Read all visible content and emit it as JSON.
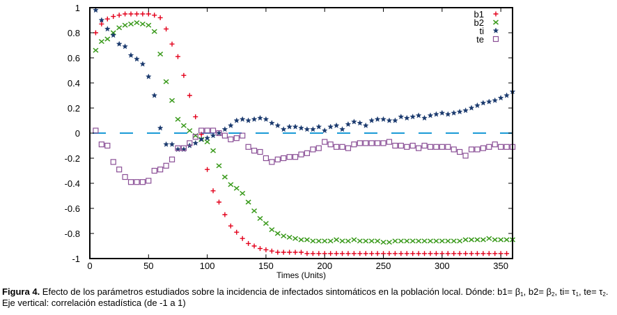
{
  "chart_data": {
    "type": "scatter",
    "title": "",
    "xlabel": "Times (Units)",
    "ylabel": "",
    "xlim": [
      0,
      360
    ],
    "ylim": [
      -1,
      1
    ],
    "xticks": [
      0,
      50,
      100,
      150,
      200,
      250,
      300,
      350
    ],
    "yticks": [
      -1,
      -0.8,
      -0.6,
      -0.4,
      -0.2,
      0,
      0.2,
      0.4,
      0.6,
      0.8,
      1
    ],
    "ytick_labels": [
      "-1",
      "-0.8",
      "-0.6",
      "-0.4",
      "-0.2",
      "0",
      "0.2",
      "0.4",
      "0.6",
      "0.8",
      "1"
    ],
    "grid": false,
    "legend_position": "top-right",
    "reference_line": {
      "y": 0,
      "style": "dashed",
      "color": "#1a9ad6"
    },
    "series": [
      {
        "name": "b1",
        "marker": "plus",
        "color": "#e3001b",
        "x": [
          5,
          10,
          15,
          20,
          25,
          30,
          35,
          40,
          45,
          50,
          55,
          60,
          65,
          70,
          75,
          80,
          85,
          90,
          95,
          100,
          105,
          110,
          115,
          120,
          125,
          130,
          135,
          140,
          145,
          150,
          155,
          160,
          165,
          170,
          175,
          180,
          185,
          190,
          195,
          200,
          205,
          210,
          215,
          220,
          225,
          230,
          235,
          240,
          245,
          250,
          255,
          260,
          265,
          270,
          275,
          280,
          285,
          290,
          295,
          300,
          305,
          310,
          315,
          320,
          325,
          330,
          335,
          340,
          345,
          350,
          355
        ],
        "values": [
          0.8,
          0.87,
          0.91,
          0.93,
          0.94,
          0.95,
          0.95,
          0.95,
          0.95,
          0.95,
          0.94,
          0.92,
          0.83,
          0.71,
          0.61,
          0.46,
          0.3,
          0.13,
          -0.01,
          -0.29,
          -0.46,
          -0.55,
          -0.65,
          -0.74,
          -0.79,
          -0.84,
          -0.88,
          -0.9,
          -0.92,
          -0.93,
          -0.94,
          -0.95,
          -0.95,
          -0.95,
          -0.95,
          -0.95,
          -0.96,
          -0.96,
          -0.96,
          -0.96,
          -0.96,
          -0.96,
          -0.96,
          -0.96,
          -0.96,
          -0.96,
          -0.96,
          -0.96,
          -0.96,
          -0.96,
          -0.96,
          -0.96,
          -0.96,
          -0.96,
          -0.96,
          -0.96,
          -0.96,
          -0.96,
          -0.96,
          -0.96,
          -0.96,
          -0.96,
          -0.96,
          -0.96,
          -0.96,
          -0.96,
          -0.96,
          -0.96,
          -0.96,
          -0.96,
          -0.96
        ]
      },
      {
        "name": "b2",
        "marker": "cross",
        "color": "#3a9a1c",
        "x": [
          5,
          10,
          15,
          20,
          25,
          30,
          35,
          40,
          45,
          50,
          55,
          60,
          65,
          70,
          75,
          80,
          85,
          90,
          95,
          100,
          105,
          110,
          115,
          120,
          125,
          130,
          135,
          140,
          145,
          150,
          155,
          160,
          165,
          170,
          175,
          180,
          185,
          190,
          195,
          200,
          205,
          210,
          215,
          220,
          225,
          230,
          235,
          240,
          245,
          250,
          255,
          260,
          265,
          270,
          275,
          280,
          285,
          290,
          295,
          300,
          305,
          310,
          315,
          320,
          325,
          330,
          335,
          340,
          345,
          350,
          355,
          360
        ],
        "values": [
          0.66,
          0.73,
          0.75,
          0.8,
          0.84,
          0.86,
          0.87,
          0.88,
          0.87,
          0.86,
          0.81,
          0.63,
          0.41,
          0.26,
          0.11,
          0.06,
          0.02,
          -0.02,
          -0.05,
          -0.07,
          -0.14,
          -0.26,
          -0.35,
          -0.41,
          -0.44,
          -0.48,
          -0.55,
          -0.62,
          -0.68,
          -0.72,
          -0.77,
          -0.8,
          -0.82,
          -0.83,
          -0.84,
          -0.85,
          -0.85,
          -0.86,
          -0.86,
          -0.86,
          -0.86,
          -0.85,
          -0.86,
          -0.86,
          -0.85,
          -0.86,
          -0.86,
          -0.86,
          -0.86,
          -0.87,
          -0.87,
          -0.86,
          -0.86,
          -0.86,
          -0.86,
          -0.86,
          -0.86,
          -0.86,
          -0.86,
          -0.86,
          -0.86,
          -0.86,
          -0.86,
          -0.85,
          -0.85,
          -0.85,
          -0.85,
          -0.84,
          -0.85,
          -0.85,
          -0.85,
          -0.85
        ]
      },
      {
        "name": "ti",
        "marker": "star",
        "color": "#1b3a6e",
        "x": [
          5,
          10,
          15,
          20,
          25,
          30,
          35,
          40,
          45,
          50,
          55,
          60,
          65,
          70,
          75,
          80,
          85,
          90,
          95,
          100,
          105,
          110,
          115,
          120,
          125,
          130,
          135,
          140,
          145,
          150,
          155,
          160,
          165,
          170,
          175,
          180,
          185,
          190,
          195,
          200,
          205,
          210,
          215,
          220,
          225,
          230,
          235,
          240,
          245,
          250,
          255,
          260,
          265,
          270,
          275,
          280,
          285,
          290,
          295,
          300,
          305,
          310,
          315,
          320,
          325,
          330,
          335,
          340,
          345,
          350,
          355,
          360
        ],
        "values": [
          0.98,
          0.9,
          0.83,
          0.78,
          0.71,
          0.69,
          0.62,
          0.59,
          0.55,
          0.45,
          0.3,
          0.04,
          -0.09,
          -0.09,
          -0.13,
          -0.13,
          -0.1,
          -0.08,
          -0.05,
          -0.04,
          -0.02,
          0.0,
          0.03,
          0.06,
          0.1,
          0.11,
          0.1,
          0.11,
          0.12,
          0.11,
          0.08,
          0.06,
          0.03,
          0.05,
          0.05,
          0.04,
          0.03,
          0.03,
          0.05,
          0.02,
          0.05,
          0.06,
          0.03,
          0.07,
          0.09,
          0.08,
          0.06,
          0.1,
          0.11,
          0.11,
          0.1,
          0.1,
          0.13,
          0.12,
          0.13,
          0.14,
          0.12,
          0.14,
          0.15,
          0.16,
          0.15,
          0.16,
          0.17,
          0.18,
          0.2,
          0.22,
          0.24,
          0.25,
          0.26,
          0.28,
          0.3,
          0.33
        ]
      },
      {
        "name": "te",
        "marker": "square",
        "color": "#8a4f96",
        "x": [
          5,
          10,
          15,
          20,
          25,
          30,
          35,
          40,
          45,
          50,
          55,
          60,
          65,
          70,
          75,
          80,
          85,
          90,
          95,
          100,
          105,
          110,
          115,
          120,
          125,
          130,
          135,
          140,
          145,
          150,
          155,
          160,
          165,
          170,
          175,
          180,
          185,
          190,
          195,
          200,
          205,
          210,
          215,
          220,
          225,
          230,
          235,
          240,
          245,
          250,
          255,
          260,
          265,
          270,
          275,
          280,
          285,
          290,
          295,
          300,
          305,
          310,
          315,
          320,
          325,
          330,
          335,
          340,
          345,
          350,
          355,
          360
        ],
        "values": [
          0.02,
          -0.09,
          -0.1,
          -0.23,
          -0.29,
          -0.35,
          -0.39,
          -0.39,
          -0.39,
          -0.38,
          -0.3,
          -0.29,
          -0.26,
          -0.21,
          -0.12,
          -0.12,
          -0.08,
          -0.03,
          0.02,
          0.02,
          0.02,
          0.0,
          -0.02,
          -0.05,
          -0.04,
          -0.02,
          -0.11,
          -0.14,
          -0.15,
          -0.2,
          -0.23,
          -0.21,
          -0.2,
          -0.19,
          -0.19,
          -0.17,
          -0.16,
          -0.13,
          -0.12,
          -0.07,
          -0.09,
          -0.11,
          -0.11,
          -0.12,
          -0.09,
          -0.08,
          -0.08,
          -0.08,
          -0.08,
          -0.08,
          -0.07,
          -0.1,
          -0.1,
          -0.11,
          -0.1,
          -0.12,
          -0.1,
          -0.11,
          -0.11,
          -0.11,
          -0.11,
          -0.13,
          -0.15,
          -0.18,
          -0.13,
          -0.13,
          -0.12,
          -0.11,
          -0.09,
          -0.11,
          -0.11,
          -0.11
        ]
      }
    ]
  },
  "caption": {
    "label": "Figura 4.",
    "text_1": " Efecto de los parámetros estudiados sobre la incidencia de infectados sintomáticos en la población local. Dónde: b1= β",
    "sub_1": "1",
    "text_2": ", b2= β",
    "sub_2": "2",
    "text_3": ", ti= τ",
    "sub_3": "1",
    "text_4": ", te= τ",
    "sub_4": "2",
    "text_5": ". Eje vertical: correlación estadística (de -1 a 1)"
  }
}
